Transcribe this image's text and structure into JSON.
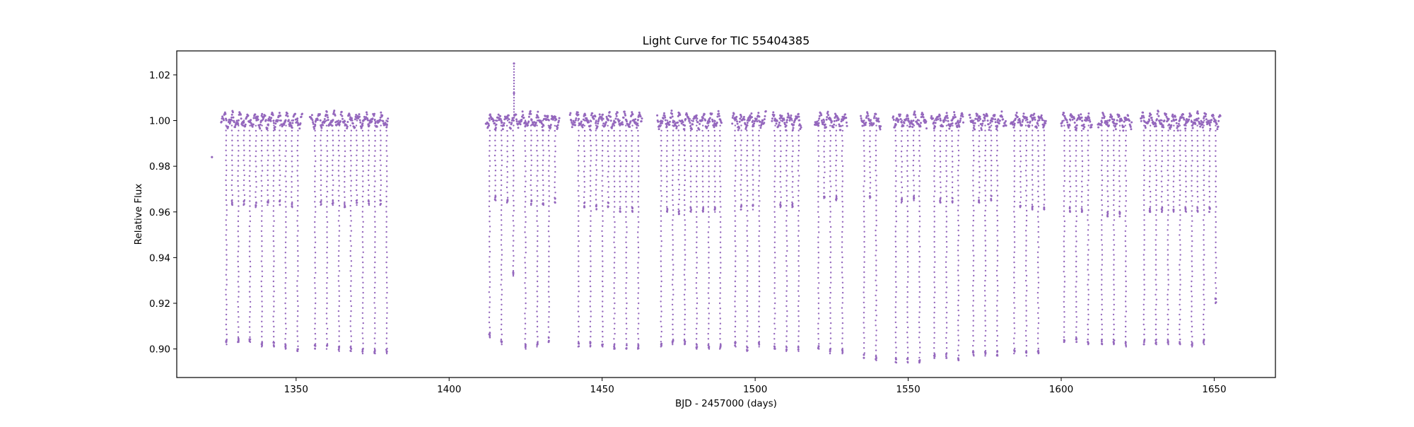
{
  "chart_data": {
    "type": "scatter",
    "title": "Light Curve for TIC 55404385",
    "xlabel": "BJD - 2457000 (days)",
    "ylabel": "Relative Flux",
    "xlim": [
      1311,
      1670
    ],
    "ylim": [
      0.8875,
      1.0305
    ],
    "xticks": [
      1350,
      1400,
      1450,
      1500,
      1550,
      1600,
      1650
    ],
    "yticks": [
      0.9,
      0.92,
      0.94,
      0.96,
      0.98,
      1.0,
      1.02
    ],
    "xtick_labels": [
      "1350",
      "1400",
      "1450",
      "1500",
      "1550",
      "1600",
      "1650"
    ],
    "ytick_labels": [
      "0.90",
      "0.92",
      "0.94",
      "0.96",
      "0.98",
      "1.00",
      "1.02"
    ],
    "grid": false,
    "legend": "none",
    "marker_color": "#9467bd",
    "baseline_flux": 1.0,
    "segments": [
      {
        "start": 1325.5,
        "end": 1352.0
      },
      {
        "start": 1354.5,
        "end": 1380.0
      },
      {
        "start": 1412.0,
        "end": 1436.0
      },
      {
        "start": 1439.5,
        "end": 1463.0
      },
      {
        "start": 1468.0,
        "end": 1489.0
      },
      {
        "start": 1492.5,
        "end": 1503.5
      },
      {
        "start": 1505.5,
        "end": 1515.0
      },
      {
        "start": 1519.5,
        "end": 1530.0
      },
      {
        "start": 1534.5,
        "end": 1541.0
      },
      {
        "start": 1545.0,
        "end": 1556.0
      },
      {
        "start": 1557.5,
        "end": 1568.0
      },
      {
        "start": 1570.0,
        "end": 1582.0
      },
      {
        "start": 1583.5,
        "end": 1595.0
      },
      {
        "start": 1600.0,
        "end": 1610.0
      },
      {
        "start": 1612.0,
        "end": 1623.0
      },
      {
        "start": 1626.0,
        "end": 1652.0
      }
    ],
    "primary_eclipses": [
      {
        "x": 1327.2,
        "min": 0.902
      },
      {
        "x": 1331.1,
        "min": 0.903
      },
      {
        "x": 1334.9,
        "min": 0.903
      },
      {
        "x": 1338.8,
        "min": 0.901
      },
      {
        "x": 1342.7,
        "min": 0.901
      },
      {
        "x": 1346.6,
        "min": 0.9
      },
      {
        "x": 1350.5,
        "min": 0.899
      },
      {
        "x": 1356.2,
        "min": 0.9
      },
      {
        "x": 1360.1,
        "min": 0.9
      },
      {
        "x": 1364.0,
        "min": 0.899
      },
      {
        "x": 1367.9,
        "min": 0.899
      },
      {
        "x": 1371.8,
        "min": 0.898
      },
      {
        "x": 1375.7,
        "min": 0.898
      },
      {
        "x": 1379.6,
        "min": 0.898
      },
      {
        "x": 1413.2,
        "min": 0.905
      },
      {
        "x": 1417.1,
        "min": 0.902
      },
      {
        "x": 1421.0,
        "min": 0.932
      },
      {
        "x": 1424.9,
        "min": 0.9
      },
      {
        "x": 1428.8,
        "min": 0.901
      },
      {
        "x": 1432.6,
        "min": 0.903
      },
      {
        "x": 1442.3,
        "min": 0.901
      },
      {
        "x": 1446.2,
        "min": 0.901
      },
      {
        "x": 1450.1,
        "min": 0.901
      },
      {
        "x": 1454.0,
        "min": 0.9
      },
      {
        "x": 1457.9,
        "min": 0.9
      },
      {
        "x": 1461.8,
        "min": 0.9
      },
      {
        "x": 1469.3,
        "min": 0.901
      },
      {
        "x": 1473.1,
        "min": 0.902
      },
      {
        "x": 1477.0,
        "min": 0.902
      },
      {
        "x": 1480.9,
        "min": 0.9
      },
      {
        "x": 1484.8,
        "min": 0.9
      },
      {
        "x": 1488.6,
        "min": 0.9
      },
      {
        "x": 1493.5,
        "min": 0.901
      },
      {
        "x": 1497.4,
        "min": 0.899
      },
      {
        "x": 1501.3,
        "min": 0.901
      },
      {
        "x": 1506.4,
        "min": 0.9
      },
      {
        "x": 1510.3,
        "min": 0.899
      },
      {
        "x": 1514.2,
        "min": 0.899
      },
      {
        "x": 1520.7,
        "min": 0.9
      },
      {
        "x": 1524.6,
        "min": 0.898
      },
      {
        "x": 1528.5,
        "min": 0.898
      },
      {
        "x": 1535.6,
        "min": 0.896
      },
      {
        "x": 1539.5,
        "min": 0.895
      },
      {
        "x": 1546.0,
        "min": 0.894
      },
      {
        "x": 1549.8,
        "min": 0.894
      },
      {
        "x": 1553.7,
        "min": 0.894
      },
      {
        "x": 1558.6,
        "min": 0.896
      },
      {
        "x": 1562.5,
        "min": 0.896
      },
      {
        "x": 1566.4,
        "min": 0.895
      },
      {
        "x": 1571.3,
        "min": 0.897
      },
      {
        "x": 1575.2,
        "min": 0.897
      },
      {
        "x": 1579.1,
        "min": 0.897
      },
      {
        "x": 1584.7,
        "min": 0.898
      },
      {
        "x": 1588.6,
        "min": 0.897
      },
      {
        "x": 1592.5,
        "min": 0.898
      },
      {
        "x": 1601.0,
        "min": 0.903
      },
      {
        "x": 1604.9,
        "min": 0.903
      },
      {
        "x": 1608.8,
        "min": 0.902
      },
      {
        "x": 1613.3,
        "min": 0.902
      },
      {
        "x": 1617.2,
        "min": 0.902
      },
      {
        "x": 1621.1,
        "min": 0.901
      },
      {
        "x": 1627.1,
        "min": 0.902
      },
      {
        "x": 1631.0,
        "min": 0.902
      },
      {
        "x": 1634.9,
        "min": 0.902
      },
      {
        "x": 1638.8,
        "min": 0.902
      },
      {
        "x": 1642.7,
        "min": 0.901
      },
      {
        "x": 1646.6,
        "min": 0.902
      },
      {
        "x": 1650.5,
        "min": 0.92
      }
    ],
    "secondary_eclipses": [
      {
        "x": 1329.1,
        "min": 0.963
      },
      {
        "x": 1333.0,
        "min": 0.963
      },
      {
        "x": 1336.9,
        "min": 0.962
      },
      {
        "x": 1340.8,
        "min": 0.963
      },
      {
        "x": 1344.7,
        "min": 0.963
      },
      {
        "x": 1348.6,
        "min": 0.962
      },
      {
        "x": 1358.1,
        "min": 0.963
      },
      {
        "x": 1362.0,
        "min": 0.963
      },
      {
        "x": 1365.9,
        "min": 0.962
      },
      {
        "x": 1369.8,
        "min": 0.963
      },
      {
        "x": 1373.7,
        "min": 0.963
      },
      {
        "x": 1377.6,
        "min": 0.963
      },
      {
        "x": 1415.1,
        "min": 0.965
      },
      {
        "x": 1419.0,
        "min": 0.964
      },
      {
        "x": 1426.8,
        "min": 0.963
      },
      {
        "x": 1430.7,
        "min": 0.963
      },
      {
        "x": 1434.6,
        "min": 0.964
      },
      {
        "x": 1444.2,
        "min": 0.962
      },
      {
        "x": 1448.1,
        "min": 0.961
      },
      {
        "x": 1452.0,
        "min": 0.962
      },
      {
        "x": 1455.9,
        "min": 0.96
      },
      {
        "x": 1459.8,
        "min": 0.96
      },
      {
        "x": 1471.2,
        "min": 0.96
      },
      {
        "x": 1475.1,
        "min": 0.959
      },
      {
        "x": 1479.0,
        "min": 0.96
      },
      {
        "x": 1482.9,
        "min": 0.96
      },
      {
        "x": 1486.8,
        "min": 0.96
      },
      {
        "x": 1495.4,
        "min": 0.961
      },
      {
        "x": 1499.3,
        "min": 0.961
      },
      {
        "x": 1508.3,
        "min": 0.962
      },
      {
        "x": 1512.2,
        "min": 0.962
      },
      {
        "x": 1522.6,
        "min": 0.966
      },
      {
        "x": 1526.5,
        "min": 0.965
      },
      {
        "x": 1537.5,
        "min": 0.966
      },
      {
        "x": 1547.9,
        "min": 0.964
      },
      {
        "x": 1551.8,
        "min": 0.965
      },
      {
        "x": 1560.5,
        "min": 0.964
      },
      {
        "x": 1564.4,
        "min": 0.964
      },
      {
        "x": 1573.2,
        "min": 0.964
      },
      {
        "x": 1577.1,
        "min": 0.965
      },
      {
        "x": 1586.7,
        "min": 0.962
      },
      {
        "x": 1590.6,
        "min": 0.961
      },
      {
        "x": 1594.5,
        "min": 0.961
      },
      {
        "x": 1602.9,
        "min": 0.96
      },
      {
        "x": 1606.8,
        "min": 0.96
      },
      {
        "x": 1615.2,
        "min": 0.958
      },
      {
        "x": 1619.1,
        "min": 0.958
      },
      {
        "x": 1629.0,
        "min": 0.96
      },
      {
        "x": 1632.9,
        "min": 0.96
      },
      {
        "x": 1636.8,
        "min": 0.96
      },
      {
        "x": 1640.7,
        "min": 0.96
      },
      {
        "x": 1644.6,
        "min": 0.96
      },
      {
        "x": 1648.5,
        "min": 0.96
      }
    ],
    "isolated_points": [
      {
        "x": 1322.5,
        "y": 0.984
      },
      {
        "x": 1421.2,
        "y": 1.025
      },
      {
        "x": 1421.2,
        "y": 1.012
      }
    ]
  }
}
